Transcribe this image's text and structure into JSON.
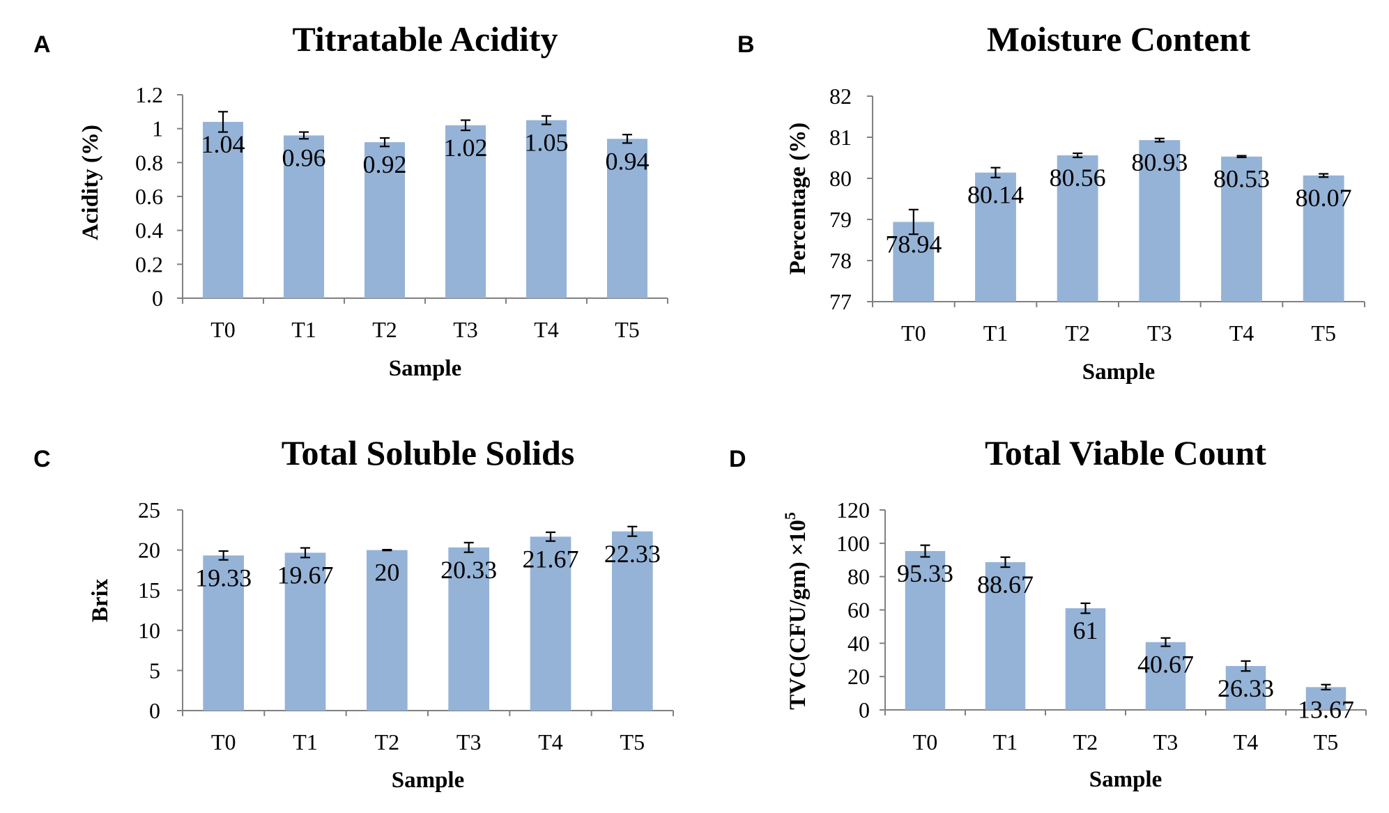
{
  "bar_color": "#95B3D7",
  "axis_color": "#808080",
  "chart_data": [
    {
      "type": "bar",
      "panel": "A",
      "title": "Titratable Acidity",
      "xlabel": "Sample",
      "ylabel": "Acidity (%)",
      "categories": [
        "T0",
        "T1",
        "T2",
        "T3",
        "T4",
        "T5"
      ],
      "values": [
        1.04,
        0.96,
        0.92,
        1.02,
        1.05,
        0.94
      ],
      "value_labels": [
        "1.04",
        "0.96",
        "0.92",
        "1.02",
        "1.05",
        "0.94"
      ],
      "errors": [
        0.06,
        0.02,
        0.025,
        0.03,
        0.025,
        0.025
      ],
      "ylim": [
        0,
        1.2
      ],
      "yticks": [
        0,
        0.2,
        0.4,
        0.6,
        0.8,
        1,
        1.2
      ],
      "ytick_labels": [
        "0",
        "0.2",
        "0.4",
        "0.6",
        "0.8",
        "1",
        "1.2"
      ]
    },
    {
      "type": "bar",
      "panel": "B",
      "title": "Moisture Content",
      "xlabel": "Sample",
      "ylabel": "Percentage (%)",
      "categories": [
        "T0",
        "T1",
        "T2",
        "T3",
        "T4",
        "T5"
      ],
      "values": [
        78.94,
        80.14,
        80.56,
        80.93,
        80.53,
        80.07
      ],
      "value_labels": [
        "78.94",
        "80.14",
        "80.56",
        "80.93",
        "80.53",
        "80.07"
      ],
      "errors": [
        0.3,
        0.12,
        0.05,
        0.04,
        0.02,
        0.04
      ],
      "ylim": [
        77,
        82
      ],
      "yticks": [
        77,
        78,
        79,
        80,
        81,
        82
      ],
      "ytick_labels": [
        "77",
        "78",
        "79",
        "80",
        "81",
        "82"
      ]
    },
    {
      "type": "bar",
      "panel": "C",
      "title": "Total Soluble Solids",
      "xlabel": "Sample",
      "ylabel": "Brix",
      "categories": [
        "T0",
        "T1",
        "T2",
        "T3",
        "T4",
        "T5"
      ],
      "values": [
        19.33,
        19.67,
        20,
        20.33,
        21.67,
        22.33
      ],
      "value_labels": [
        "19.33",
        "19.67",
        "20",
        "20.33",
        "21.67",
        "22.33"
      ],
      "errors": [
        0.55,
        0.6,
        0.05,
        0.6,
        0.55,
        0.6
      ],
      "ylim": [
        0,
        25
      ],
      "yticks": [
        0,
        5,
        10,
        15,
        20,
        25
      ],
      "ytick_labels": [
        "0",
        "5",
        "10",
        "15",
        "20",
        "25"
      ]
    },
    {
      "type": "bar",
      "panel": "D",
      "title": "Total Viable Count",
      "xlabel": "Sample",
      "ylabel": "TVC(CFU/gm) ×10",
      "ylabel_sup": "5",
      "categories": [
        "T0",
        "T1",
        "T2",
        "T3",
        "T4",
        "T5"
      ],
      "values": [
        95.33,
        88.67,
        61,
        40.67,
        26.33,
        13.67
      ],
      "value_labels": [
        "95.33",
        "88.67",
        "61",
        "40.67",
        "26.33",
        "13.67"
      ],
      "errors": [
        3.5,
        3,
        3,
        2.5,
        3,
        1.5
      ],
      "ylim": [
        0,
        120
      ],
      "yticks": [
        0,
        20,
        40,
        60,
        80,
        100,
        120
      ],
      "ytick_labels": [
        "0",
        "20",
        "40",
        "60",
        "80",
        "100",
        "120"
      ]
    }
  ]
}
